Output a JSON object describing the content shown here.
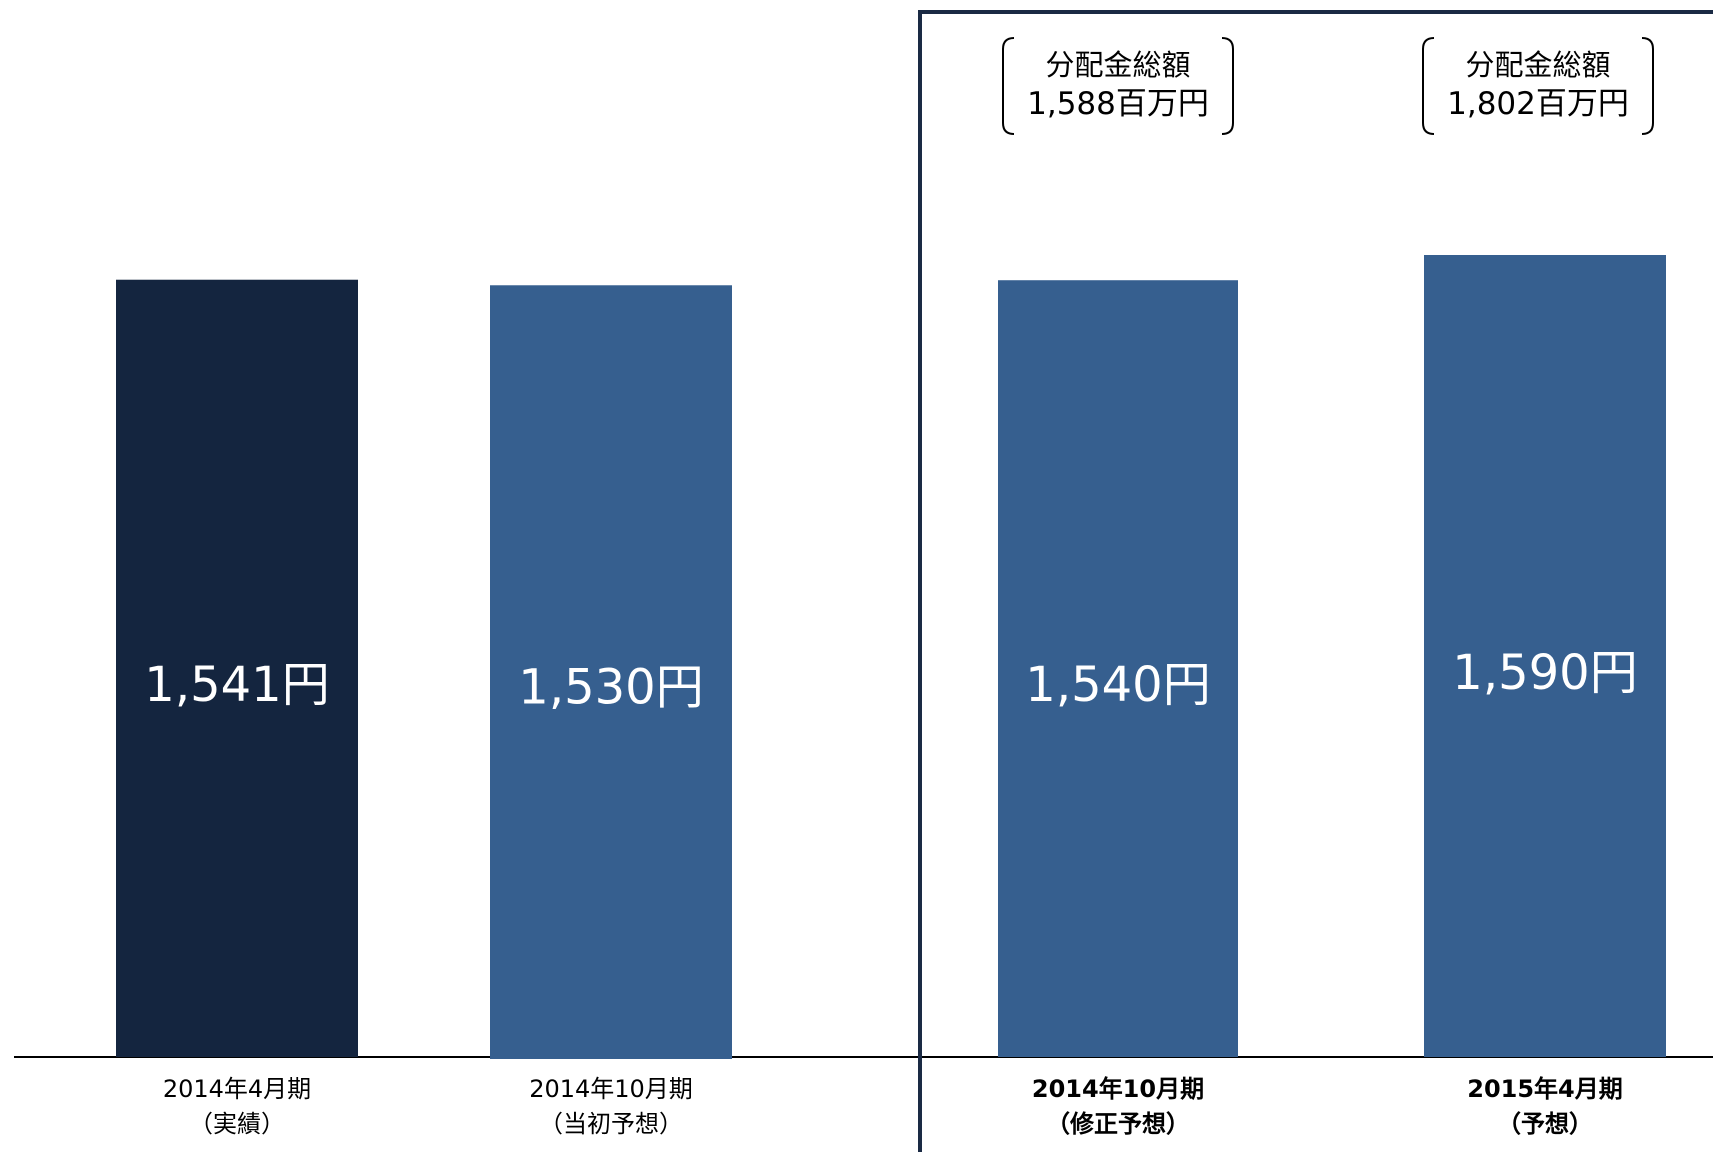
{
  "chart_data": {
    "type": "bar",
    "title": "",
    "xlabel": "",
    "ylabel": "",
    "ylim": [
      0,
      1700
    ],
    "grid": false,
    "categories": [
      {
        "line1": "2014年4月期",
        "line2": "（実績）",
        "bold": false
      },
      {
        "line1": "2014年10月期",
        "line2": "（当初予想）",
        "bold": false
      },
      {
        "line1": "2014年10月期",
        "line2": "（修正予想）",
        "bold": true
      },
      {
        "line1": "2015年4月期",
        "line2": "（予想）",
        "bold": true
      }
    ],
    "values": [
      1541,
      1530,
      1540,
      1590
    ],
    "value_labels": [
      "1,541円",
      "1,530円",
      "1,540円",
      "1,590円"
    ],
    "bar_colors": [
      "#14253f",
      "#365f8f",
      "#365f8f",
      "#365f8f"
    ],
    "annotations": [
      {
        "category_index": 2,
        "line1": "分配金総額",
        "line2": "1,588百万円"
      },
      {
        "category_index": 3,
        "line1": "分配金総額",
        "line2": "1,802百万円"
      }
    ],
    "highlight_box": {
      "from_category_index": 2,
      "to_category_index": 3,
      "color": "#1a2a44"
    }
  }
}
